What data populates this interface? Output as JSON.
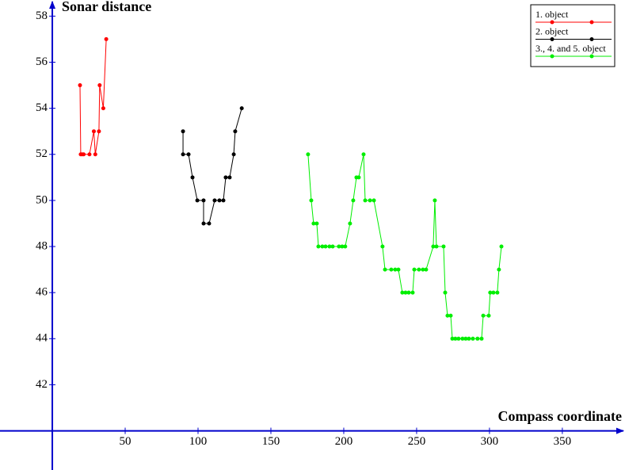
{
  "chart_data": {
    "type": "line",
    "y_title": "Sonar distance",
    "x_title": "Compass coordinate",
    "xlim": [
      -35.9,
      393
    ],
    "ylim": [
      38.3,
      58.7
    ],
    "xticks": [
      50,
      100,
      150,
      200,
      250,
      300,
      350
    ],
    "yticks": [
      42,
      44,
      46,
      48,
      50,
      52,
      54,
      56,
      58
    ],
    "legend": "top-right",
    "series": [
      {
        "name": "1. object",
        "color": "#ff0000",
        "x": [
          19,
          19.5,
          20.5,
          21.5,
          25.5,
          28.5,
          29.5,
          32,
          32.5,
          35,
          37
        ],
        "values": [
          55,
          52,
          52,
          52,
          52,
          53,
          52,
          53,
          55,
          54,
          57
        ]
      },
      {
        "name": "2. object",
        "color": "#000000",
        "x": [
          89.7,
          89.7,
          93.5,
          96.2,
          99.5,
          103.8,
          103.8,
          107.6,
          111.4,
          114.7,
          117.4,
          119,
          121.7,
          124.5,
          125.5,
          130
        ],
        "values": [
          53,
          52,
          52,
          51,
          50,
          50,
          49,
          49,
          50,
          50,
          50,
          51,
          51,
          52,
          53,
          54
        ]
      },
      {
        "name": "3., 4. and 5. object",
        "color": "#00ee00",
        "x": [
          175.5,
          177.7,
          179.3,
          181.5,
          182.6,
          185.3,
          187.5,
          190.2,
          192.4,
          196.7,
          198.9,
          201,
          204.3,
          206.5,
          208.7,
          210.3,
          213.6,
          214.7,
          218,
          220.7,
          226.6,
          228.3,
          232.6,
          235.3,
          237.5,
          240.2,
          242.4,
          244.6,
          247.3,
          248.4,
          251.6,
          254.3,
          256.5,
          261.4,
          262.5,
          263.6,
          268.5,
          269.6,
          271.2,
          273.4,
          274.5,
          276.6,
          278.8,
          281.5,
          283.7,
          285.9,
          288.6,
          291.8,
          294.6,
          295.7,
          299.5,
          300.5,
          302.7,
          305.4,
          306.5,
          308.2
        ],
        "values": [
          52,
          50,
          49,
          49,
          48,
          48,
          48,
          48,
          48,
          48,
          48,
          48,
          49,
          50,
          51,
          51,
          52,
          50,
          50,
          50,
          48,
          47,
          47,
          47,
          47,
          46,
          46,
          46,
          46,
          47,
          47,
          47,
          47,
          48,
          50,
          48,
          48,
          46,
          45,
          45,
          44,
          44,
          44,
          44,
          44,
          44,
          44,
          44,
          44,
          45,
          45,
          46,
          46,
          46,
          47,
          48
        ]
      }
    ]
  }
}
